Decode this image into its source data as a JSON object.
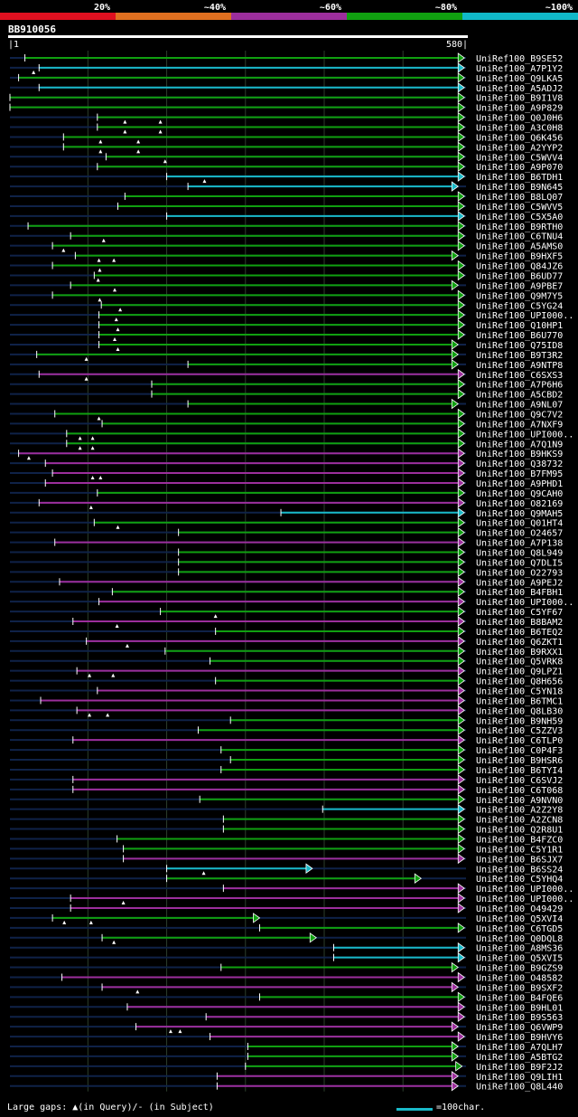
{
  "query_id": "BB910056",
  "query_length": 580,
  "ruler": {
    "start_label": "|1",
    "end_label": "580|"
  },
  "identity_bins": [
    {
      "label": "20%",
      "color": "#e01020"
    },
    {
      "label": "~40%",
      "color": "#e07020"
    },
    {
      "label": "~60%",
      "color": "#9c2e9c"
    },
    {
      "label": "~80%",
      "color": "#10a010"
    },
    {
      "label": "~100%",
      "color": "#10b8c8"
    }
  ],
  "legend_text": "Large gaps: ▲(in Query)/- (in Subject)",
  "scale_text": "=100char.",
  "chart_data": {
    "type": "alignment_overview",
    "title": "BB910056",
    "x_range": [
      1,
      580
    ],
    "bin_colors": {
      "green": "#10a010",
      "cyan": "#19b9c8",
      "purple": "#9c2e9c"
    },
    "rows": [
      {
        "label": "UniRef100_B9SE52",
        "start": 20,
        "end": 578,
        "color": "green",
        "gaps": []
      },
      {
        "label": "UniRef100_A7P1Y2",
        "start": 38,
        "end": 578,
        "color": "cyan",
        "gaps": [
          31
        ]
      },
      {
        "label": "UniRef100_Q9LKA5",
        "start": 12,
        "end": 578,
        "color": "green",
        "gaps": []
      },
      {
        "label": "UniRef100_A5ADJ2",
        "start": 38,
        "end": 578,
        "color": "cyan",
        "gaps": []
      },
      {
        "label": "UniRef100_B9I1V8",
        "start": 1,
        "end": 578,
        "color": "green",
        "gaps": []
      },
      {
        "label": "UniRef100_A9P829",
        "start": 1,
        "end": 578,
        "color": "green",
        "gaps": []
      },
      {
        "label": "UniRef100_Q0J0H6",
        "start": 112,
        "end": 578,
        "color": "green",
        "gaps": [
          147,
          192
        ]
      },
      {
        "label": "UniRef100_A3C0H8",
        "start": 112,
        "end": 578,
        "color": "green",
        "gaps": [
          147,
          192
        ]
      },
      {
        "label": "UniRef100_Q6K456",
        "start": 69,
        "end": 578,
        "color": "green",
        "gaps": [
          116,
          164
        ]
      },
      {
        "label": "UniRef100_A2YYP2",
        "start": 69,
        "end": 578,
        "color": "green",
        "gaps": [
          116,
          164
        ]
      },
      {
        "label": "UniRef100_C5WVV4",
        "start": 123,
        "end": 578,
        "color": "green",
        "gaps": [
          198
        ]
      },
      {
        "label": "UniRef100_A9P070",
        "start": 112,
        "end": 578,
        "color": "green",
        "gaps": []
      },
      {
        "label": "UniRef100_B6TDH1",
        "start": 200,
        "end": 578,
        "color": "cyan",
        "gaps": [
          248
        ]
      },
      {
        "label": "UniRef100_B9N645",
        "start": 227,
        "end": 570,
        "color": "cyan",
        "gaps": []
      },
      {
        "label": "UniRef100_B8LQ07",
        "start": 147,
        "end": 578,
        "color": "green",
        "gaps": []
      },
      {
        "label": "UniRef100_C5WVV5",
        "start": 138,
        "end": 578,
        "color": "green",
        "gaps": []
      },
      {
        "label": "UniRef100_C5X5A0",
        "start": 200,
        "end": 578,
        "color": "cyan",
        "gaps": []
      },
      {
        "label": "UniRef100_B9RTH0",
        "start": 24,
        "end": 578,
        "color": "green",
        "gaps": []
      },
      {
        "label": "UniRef100_C6TNU4",
        "start": 78,
        "end": 578,
        "color": "green",
        "gaps": [
          120
        ]
      },
      {
        "label": "UniRef100_A5AMS0",
        "start": 55,
        "end": 578,
        "color": "green",
        "gaps": [
          69
        ]
      },
      {
        "label": "UniRef100_B9HXF5",
        "start": 84,
        "end": 570,
        "color": "green",
        "gaps": [
          114,
          133
        ]
      },
      {
        "label": "UniRef100_Q84JZ6",
        "start": 55,
        "end": 578,
        "color": "green",
        "gaps": [
          115
        ]
      },
      {
        "label": "UniRef100_B6UD77",
        "start": 108,
        "end": 578,
        "color": "green",
        "gaps": [
          113
        ]
      },
      {
        "label": "UniRef100_A9PBE7",
        "start": 78,
        "end": 570,
        "color": "green",
        "gaps": [
          134
        ]
      },
      {
        "label": "UniRef100_Q9M7Y5",
        "start": 55,
        "end": 578,
        "color": "green",
        "gaps": [
          115
        ]
      },
      {
        "label": "UniRef100_C5YG24",
        "start": 117,
        "end": 578,
        "color": "green",
        "gaps": [
          141
        ]
      },
      {
        "label": "UniRef100_UPI000..",
        "start": 114,
        "end": 578,
        "color": "green",
        "gaps": [
          136
        ]
      },
      {
        "label": "UniRef100_Q10HP1",
        "start": 114,
        "end": 578,
        "color": "green",
        "gaps": [
          138
        ]
      },
      {
        "label": "UniRef100_B6U770",
        "start": 114,
        "end": 578,
        "color": "green",
        "gaps": [
          134
        ]
      },
      {
        "label": "UniRef100_Q75ID8",
        "start": 114,
        "end": 570,
        "color": "green",
        "gaps": [
          138
        ]
      },
      {
        "label": "UniRef100_B9T3R2",
        "start": 35,
        "end": 570,
        "color": "green",
        "gaps": [
          98
        ]
      },
      {
        "label": "UniRef100_A9NTP8",
        "start": 227,
        "end": 570,
        "color": "green",
        "gaps": []
      },
      {
        "label": "UniRef100_C6SXS3",
        "start": 38,
        "end": 578,
        "color": "purple",
        "gaps": [
          98
        ]
      },
      {
        "label": "UniRef100_A7P6H6",
        "start": 181,
        "end": 578,
        "color": "green",
        "gaps": []
      },
      {
        "label": "UniRef100_A5CBD2",
        "start": 181,
        "end": 578,
        "color": "green",
        "gaps": []
      },
      {
        "label": "UniRef100_A9NL07",
        "start": 227,
        "end": 570,
        "color": "green",
        "gaps": []
      },
      {
        "label": "UniRef100_Q9C7V2",
        "start": 58,
        "end": 578,
        "color": "green",
        "gaps": [
          114
        ]
      },
      {
        "label": "UniRef100_A7NXF9",
        "start": 118,
        "end": 578,
        "color": "green",
        "gaps": []
      },
      {
        "label": "UniRef100_UPI000..",
        "start": 73,
        "end": 578,
        "color": "green",
        "gaps": [
          90,
          106
        ]
      },
      {
        "label": "UniRef100_A7Q1N9",
        "start": 73,
        "end": 578,
        "color": "green",
        "gaps": [
          90,
          106
        ]
      },
      {
        "label": "UniRef100_B9HKS9",
        "start": 12,
        "end": 578,
        "color": "purple",
        "gaps": [
          25
        ]
      },
      {
        "label": "UniRef100_Q38732",
        "start": 46,
        "end": 578,
        "color": "purple",
        "gaps": []
      },
      {
        "label": "UniRef100_B7FM95",
        "start": 55,
        "end": 578,
        "color": "purple",
        "gaps": [
          106,
          116
        ]
      },
      {
        "label": "UniRef100_A9PHD1",
        "start": 46,
        "end": 578,
        "color": "purple",
        "gaps": []
      },
      {
        "label": "UniRef100_Q9CAH0",
        "start": 112,
        "end": 578,
        "color": "green",
        "gaps": []
      },
      {
        "label": "UniRef100_O82169",
        "start": 38,
        "end": 578,
        "color": "purple",
        "gaps": [
          104
        ]
      },
      {
        "label": "UniRef100_Q9MAH5",
        "start": 345,
        "end": 578,
        "color": "cyan",
        "gaps": []
      },
      {
        "label": "UniRef100_Q01HT4",
        "start": 108,
        "end": 578,
        "color": "green",
        "gaps": [
          138
        ]
      },
      {
        "label": "UniRef100_O24657",
        "start": 215,
        "end": 578,
        "color": "green",
        "gaps": []
      },
      {
        "label": "UniRef100_A7P138",
        "start": 58,
        "end": 578,
        "color": "purple",
        "gaps": []
      },
      {
        "label": "UniRef100_Q8L949",
        "start": 215,
        "end": 578,
        "color": "green",
        "gaps": []
      },
      {
        "label": "UniRef100_Q7DLI5",
        "start": 215,
        "end": 578,
        "color": "green",
        "gaps": []
      },
      {
        "label": "UniRef100_O22793",
        "start": 215,
        "end": 578,
        "color": "green",
        "gaps": []
      },
      {
        "label": "UniRef100_A9PEJ2",
        "start": 64,
        "end": 578,
        "color": "purple",
        "gaps": []
      },
      {
        "label": "UniRef100_B4FBH1",
        "start": 131,
        "end": 578,
        "color": "green",
        "gaps": []
      },
      {
        "label": "UniRef100_UPI000..",
        "start": 114,
        "end": 578,
        "color": "purple",
        "gaps": []
      },
      {
        "label": "UniRef100_C5YF67",
        "start": 192,
        "end": 578,
        "color": "green",
        "gaps": [
          262
        ]
      },
      {
        "label": "UniRef100_B8BAM2",
        "start": 81,
        "end": 578,
        "color": "purple",
        "gaps": [
          137
        ]
      },
      {
        "label": "UniRef100_B6TEQ2",
        "start": 262,
        "end": 578,
        "color": "green",
        "gaps": []
      },
      {
        "label": "UniRef100_Q6ZKT1",
        "start": 98,
        "end": 578,
        "color": "purple",
        "gaps": [
          150
        ]
      },
      {
        "label": "UniRef100_B9RXX1",
        "start": 198,
        "end": 578,
        "color": "green",
        "gaps": []
      },
      {
        "label": "UniRef100_Q5VRK8",
        "start": 255,
        "end": 578,
        "color": "green",
        "gaps": []
      },
      {
        "label": "UniRef100_Q9LPZ1",
        "start": 86,
        "end": 578,
        "color": "purple",
        "gaps": [
          102,
          132
        ]
      },
      {
        "label": "UniRef100_Q8H656",
        "start": 262,
        "end": 578,
        "color": "green",
        "gaps": []
      },
      {
        "label": "UniRef100_C5YN18",
        "start": 112,
        "end": 578,
        "color": "purple",
        "gaps": []
      },
      {
        "label": "UniRef100_B6TMC1",
        "start": 40,
        "end": 578,
        "color": "purple",
        "gaps": []
      },
      {
        "label": "UniRef100_Q8LB30",
        "start": 86,
        "end": 578,
        "color": "purple",
        "gaps": [
          102,
          125
        ]
      },
      {
        "label": "UniRef100_B9NH59",
        "start": 281,
        "end": 578,
        "color": "green",
        "gaps": []
      },
      {
        "label": "UniRef100_C5ZZV3",
        "start": 240,
        "end": 578,
        "color": "green",
        "gaps": []
      },
      {
        "label": "UniRef100_C6TLP0",
        "start": 81,
        "end": 578,
        "color": "purple",
        "gaps": []
      },
      {
        "label": "UniRef100_C0P4F3",
        "start": 269,
        "end": 578,
        "color": "green",
        "gaps": []
      },
      {
        "label": "UniRef100_B9HSR6",
        "start": 281,
        "end": 578,
        "color": "green",
        "gaps": []
      },
      {
        "label": "UniRef100_B6TYI4",
        "start": 269,
        "end": 578,
        "color": "green",
        "gaps": []
      },
      {
        "label": "UniRef100_C6SVJ2",
        "start": 81,
        "end": 578,
        "color": "purple",
        "gaps": []
      },
      {
        "label": "UniRef100_C6T068",
        "start": 81,
        "end": 578,
        "color": "purple",
        "gaps": []
      },
      {
        "label": "UniRef100_A9NVN0",
        "start": 242,
        "end": 578,
        "color": "green",
        "gaps": []
      },
      {
        "label": "UniRef100_A2Z2Y8",
        "start": 398,
        "end": 578,
        "color": "cyan",
        "gaps": []
      },
      {
        "label": "UniRef100_A2ZCN8",
        "start": 272,
        "end": 578,
        "color": "green",
        "gaps": []
      },
      {
        "label": "UniRef100_Q2R8U1",
        "start": 272,
        "end": 578,
        "color": "green",
        "gaps": []
      },
      {
        "label": "UniRef100_B4FZC0",
        "start": 137,
        "end": 578,
        "color": "green",
        "gaps": []
      },
      {
        "label": "UniRef100_C5Y1R1",
        "start": 145,
        "end": 578,
        "color": "green",
        "gaps": []
      },
      {
        "label": "UniRef100_B6SJX7",
        "start": 145,
        "end": 578,
        "color": "purple",
        "gaps": []
      },
      {
        "label": "UniRef100_B6SS24",
        "start": 200,
        "end": 385,
        "color": "cyan",
        "gaps": [
          247
        ]
      },
      {
        "label": "UniRef100_C5YHQ4",
        "start": 200,
        "end": 523,
        "color": "green",
        "gaps": []
      },
      {
        "label": "UniRef100_UPI000..",
        "start": 272,
        "end": 578,
        "color": "purple",
        "gaps": []
      },
      {
        "label": "UniRef100_UPI000..",
        "start": 78,
        "end": 578,
        "color": "purple",
        "gaps": [
          145
        ]
      },
      {
        "label": "UniRef100_O49429",
        "start": 78,
        "end": 578,
        "color": "purple",
        "gaps": []
      },
      {
        "label": "UniRef100_Q5XVI4",
        "start": 55,
        "end": 318,
        "color": "green",
        "gaps": [
          70,
          104
        ]
      },
      {
        "label": "UniRef100_C6TGD5",
        "start": 318,
        "end": 578,
        "color": "green",
        "gaps": []
      },
      {
        "label": "UniRef100_Q0DQL8",
        "start": 118,
        "end": 390,
        "color": "green",
        "gaps": [
          133
        ]
      },
      {
        "label": "UniRef100_A8MS36",
        "start": 412,
        "end": 578,
        "color": "cyan",
        "gaps": []
      },
      {
        "label": "UniRef100_Q5XVI5",
        "start": 412,
        "end": 578,
        "color": "cyan",
        "gaps": []
      },
      {
        "label": "UniRef100_B9GZS9",
        "start": 269,
        "end": 570,
        "color": "green",
        "gaps": []
      },
      {
        "label": "UniRef100_O48582",
        "start": 67,
        "end": 578,
        "color": "purple",
        "gaps": []
      },
      {
        "label": "UniRef100_B9SXF2",
        "start": 118,
        "end": 570,
        "color": "purple",
        "gaps": [
          163
        ]
      },
      {
        "label": "UniRef100_B4FQE6",
        "start": 318,
        "end": 578,
        "color": "green",
        "gaps": []
      },
      {
        "label": "UniRef100_B9HL01",
        "start": 150,
        "end": 578,
        "color": "purple",
        "gaps": []
      },
      {
        "label": "UniRef100_B9S563",
        "start": 250,
        "end": 578,
        "color": "purple",
        "gaps": []
      },
      {
        "label": "UniRef100_Q6VWP9",
        "start": 161,
        "end": 570,
        "color": "purple",
        "gaps": [
          205,
          217
        ]
      },
      {
        "label": "UniRef100_B9HVY6",
        "start": 255,
        "end": 578,
        "color": "purple",
        "gaps": []
      },
      {
        "label": "UniRef100_A7QLH7",
        "start": 303,
        "end": 570,
        "color": "green",
        "gaps": []
      },
      {
        "label": "UniRef100_A5BTG2",
        "start": 303,
        "end": 570,
        "color": "green",
        "gaps": []
      },
      {
        "label": "UniRef100_B9F2J2",
        "start": 300,
        "end": 575,
        "color": "green",
        "gaps": []
      },
      {
        "label": "UniRef100_Q9LIH1",
        "start": 264,
        "end": 570,
        "color": "purple",
        "gaps": []
      },
      {
        "label": "UniRef100_Q8L440",
        "start": 264,
        "end": 570,
        "color": "purple",
        "gaps": []
      }
    ]
  }
}
